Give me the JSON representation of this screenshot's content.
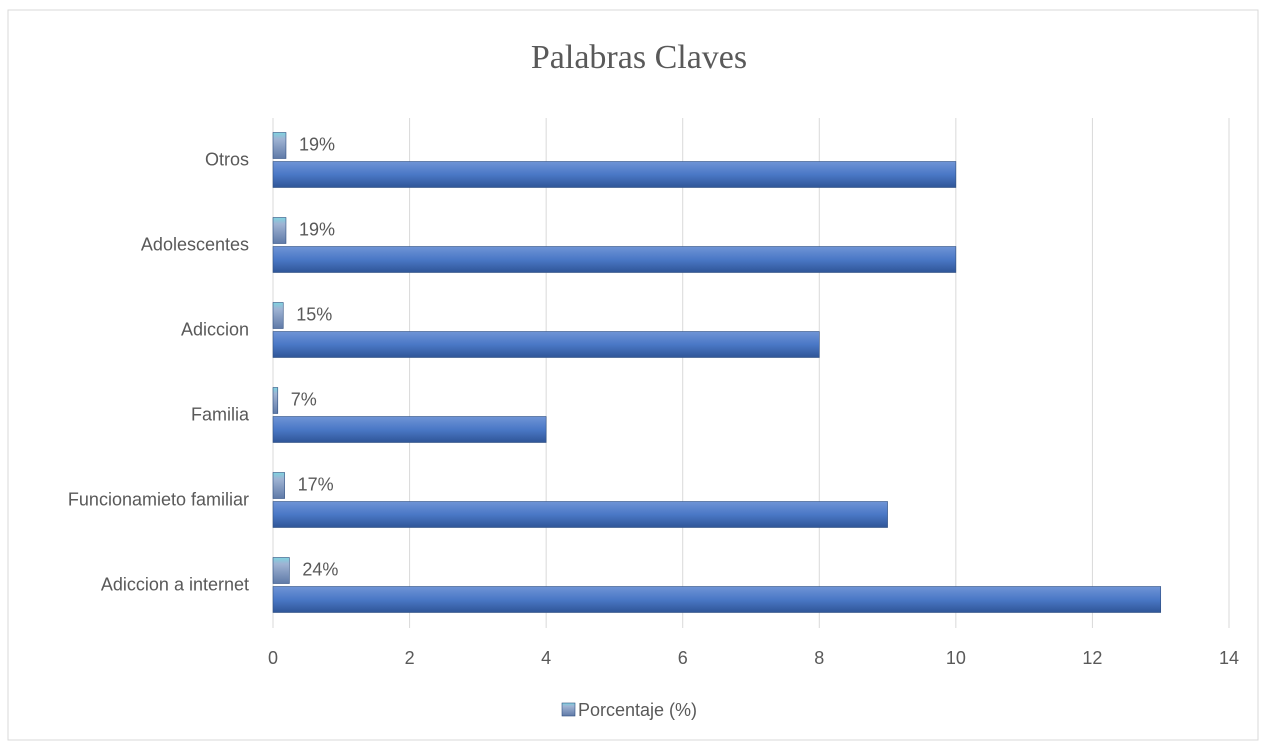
{
  "chart_data": {
    "type": "bar",
    "orientation": "horizontal",
    "title": "Palabras Claves",
    "categories": [
      "Adiccion a internet",
      "Funcionamieto familiar",
      "Familia",
      "Adiccion",
      "Adolescentes",
      "Otros"
    ],
    "series": [
      {
        "color": "#4472c4",
        "values": [
          13,
          9,
          4,
          8,
          10,
          10
        ]
      },
      {
        "name": "Porcentaje (%)",
        "color": "#8ea4c8",
        "values": [
          0.24,
          0.17,
          0.07,
          0.15,
          0.19,
          0.19
        ],
        "value_labels": [
          "24%",
          "17%",
          "7%",
          "15%",
          "19%",
          "19%"
        ]
      }
    ],
    "xlim": [
      0,
      14
    ],
    "xticks": [
      0,
      2,
      4,
      6,
      8,
      10,
      12,
      14
    ],
    "grid": true,
    "legend": "bottom"
  }
}
